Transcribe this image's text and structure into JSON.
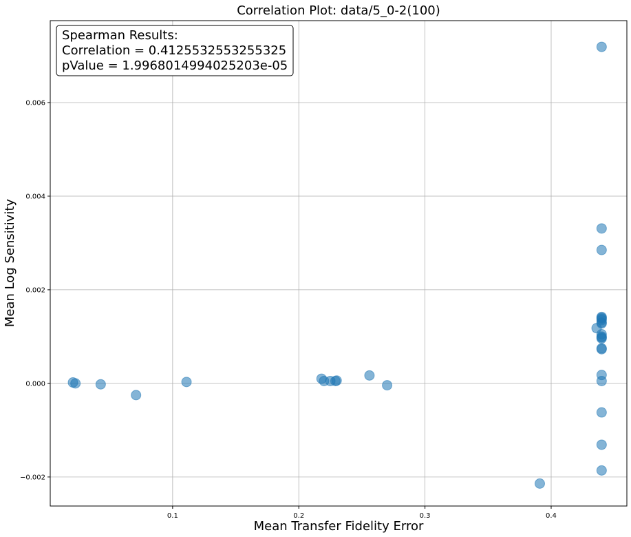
{
  "chart_data": {
    "type": "scatter",
    "title": "Correlation Plot: data/5_0-2(100)",
    "xlabel": "Mean Transfer Fidelity Error",
    "ylabel": "Mean Log Sensitivity",
    "xlim": [
      0.003,
      0.46
    ],
    "ylim": [
      -0.00262,
      0.00775
    ],
    "xticks": [
      0.1,
      0.2,
      0.3,
      0.4
    ],
    "xtick_labels": [
      "0.1",
      "0.2",
      "0.3",
      "0.4"
    ],
    "yticks": [
      -0.002,
      0.0,
      0.002,
      0.004,
      0.006
    ],
    "ytick_labels": [
      "−0.002",
      "0.000",
      "0.002",
      "0.004",
      "0.006"
    ],
    "grid": true,
    "annotation": {
      "lines": [
        "Spearman Results:",
        "Correlation = 0.4125532553255325",
        "pValue = 1.9968014994025203e-05"
      ],
      "placement": "top-left"
    },
    "marker_color": "#1f77b4",
    "marker_alpha": 0.55,
    "series": [
      {
        "x": [
          0.021,
          0.023,
          0.043,
          0.071,
          0.111,
          0.218,
          0.22,
          0.225,
          0.229,
          0.23,
          0.256,
          0.27,
          0.391,
          0.436,
          0.44,
          0.44,
          0.44,
          0.44,
          0.44,
          0.44,
          0.44,
          0.44,
          0.44,
          0.44,
          0.44,
          0.44,
          0.44,
          0.44,
          0.44,
          0.44,
          0.44,
          0.44,
          0.44
        ],
        "y": [
          2e-05,
          0.0,
          -2e-05,
          -0.00025,
          3e-05,
          0.0001,
          5e-05,
          5e-05,
          5e-05,
          6e-05,
          0.00017,
          -4e-05,
          -0.00214,
          0.00118,
          0.00719,
          0.00331,
          0.00285,
          0.00142,
          0.0014,
          0.00138,
          0.00135,
          0.0013,
          0.00128,
          0.00105,
          0.001,
          0.00098,
          0.00096,
          0.00075,
          0.00073,
          0.00018,
          5e-05,
          -0.00062,
          -0.00131
        ]
      }
    ],
    "extra_points": {
      "x": [
        0.44
      ],
      "y": [
        -0.00186
      ]
    }
  }
}
